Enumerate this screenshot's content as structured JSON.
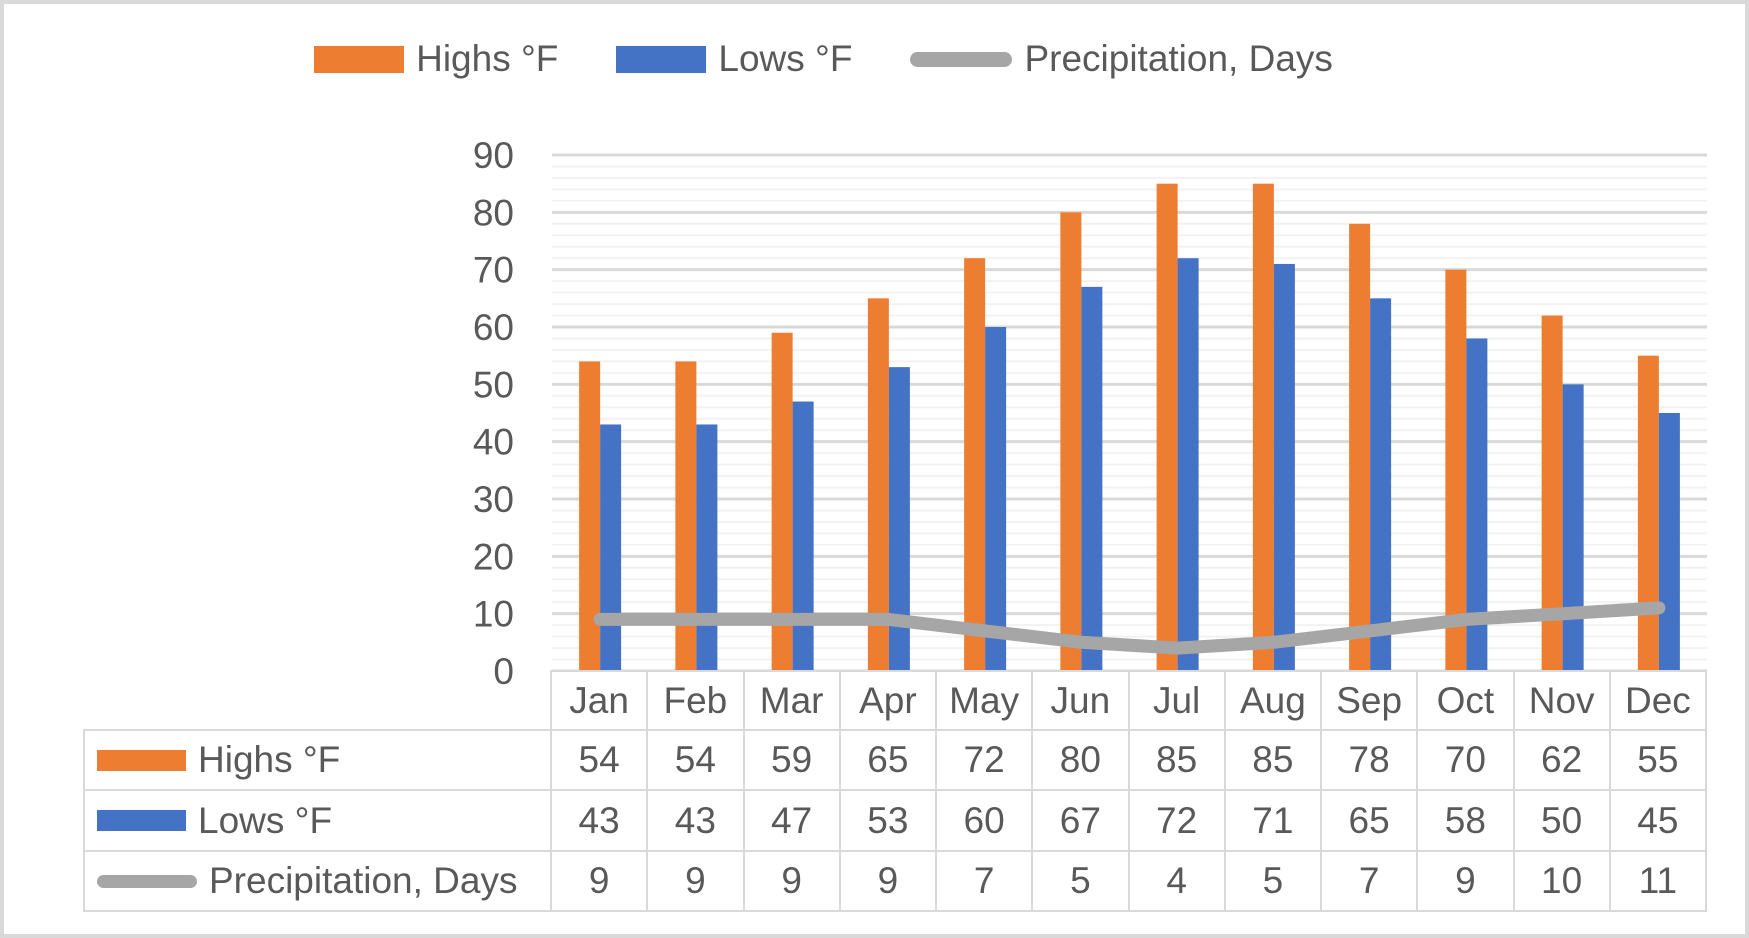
{
  "legend": {
    "items": [
      {
        "label": "Highs °F",
        "swatch": "bar",
        "color": "#ED7D31"
      },
      {
        "label": "Lows °F",
        "swatch": "bar",
        "color": "#4472C4"
      },
      {
        "label": "Precipitation, Days",
        "swatch": "line",
        "color": "#A6A6A6"
      }
    ]
  },
  "chart_data": {
    "type": "bar",
    "subtype": "grouped-bars-with-line-overlay",
    "title": "",
    "categories": [
      "Jan",
      "Feb",
      "Mar",
      "Apr",
      "May",
      "Jun",
      "Jul",
      "Aug",
      "Sep",
      "Oct",
      "Nov",
      "Dec"
    ],
    "series": [
      {
        "name": "Highs °F",
        "type": "bar",
        "color": "#ED7D31",
        "values": [
          54,
          54,
          59,
          65,
          72,
          80,
          85,
          85,
          78,
          70,
          62,
          55
        ]
      },
      {
        "name": "Lows °F",
        "type": "bar",
        "color": "#4472C4",
        "values": [
          43,
          43,
          47,
          53,
          60,
          67,
          72,
          71,
          65,
          58,
          50,
          45
        ]
      },
      {
        "name": "Precipitation, Days",
        "type": "line",
        "color": "#A6A6A6",
        "values": [
          9,
          9,
          9,
          9,
          7,
          5,
          4,
          5,
          7,
          9,
          10,
          11
        ]
      }
    ],
    "y_axis": {
      "min": 0,
      "max": 90,
      "major_step": 10,
      "minor_step": 2,
      "tick_labels": [
        "0",
        "10",
        "20",
        "30",
        "40",
        "50",
        "60",
        "70",
        "80",
        "90"
      ]
    },
    "xlabel": "",
    "ylabel": "",
    "grid": {
      "major": true,
      "minor": true,
      "major_color": "#D9D9D9",
      "minor_color": "#F2F2F2"
    },
    "legend_position": "top",
    "colors": {
      "text": "#595959",
      "table_border": "#D9D9D9",
      "frame_border": "#D9D9D9"
    }
  }
}
